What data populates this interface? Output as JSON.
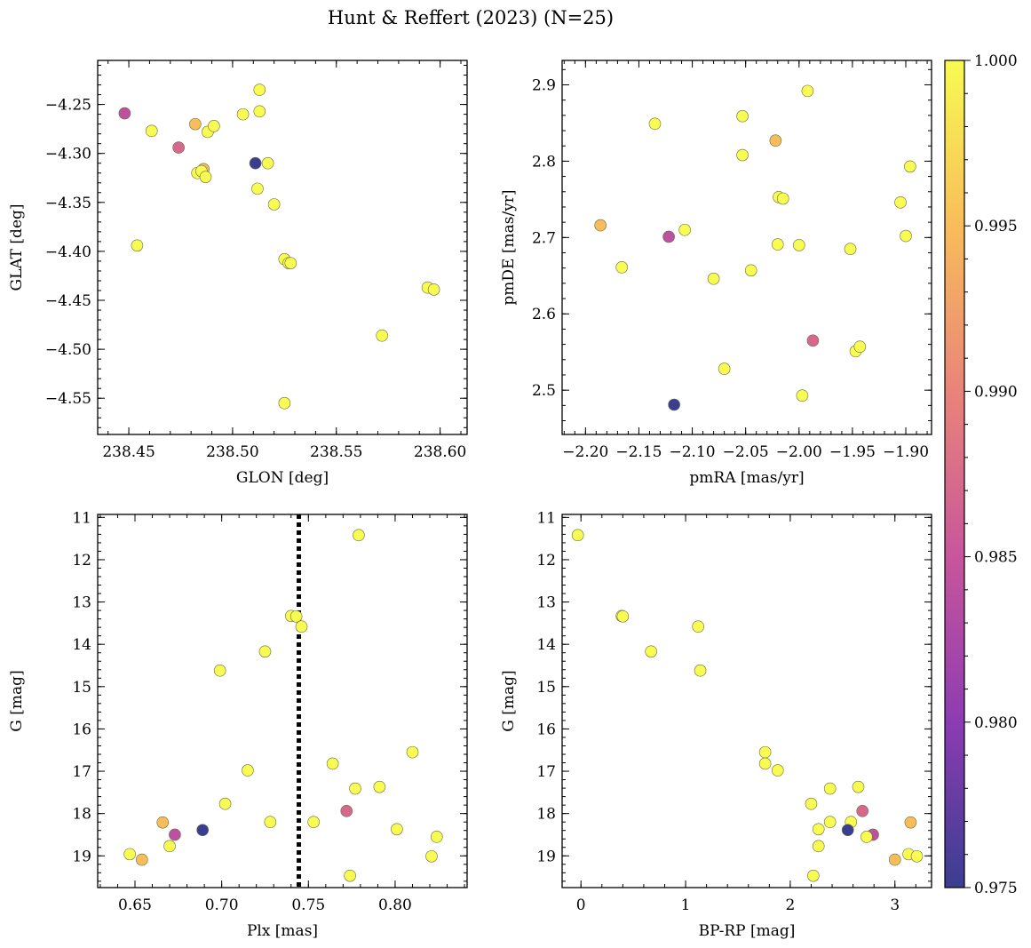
{
  "figure": {
    "title": "Hunt & Reffert (2023) (N=25)"
  },
  "colorbar": {
    "min": 0.975,
    "max": 1.0,
    "colormap": "plasma",
    "ticks": [
      "0.975",
      "0.980",
      "0.985",
      "0.990",
      "0.995",
      "1.000"
    ],
    "tick_values": [
      0.975,
      0.98,
      0.985,
      0.99,
      0.995,
      1.0
    ]
  },
  "chart_data": [
    {
      "id": "glon-glat",
      "type": "scatter",
      "xlabel": "GLON [deg]",
      "ylabel": "GLAT [deg]",
      "xlim": [
        238.435,
        238.613
      ],
      "ylim": [
        -4.587,
        -4.205
      ],
      "y_inverted": false,
      "grid": false,
      "xticks": [
        238.45,
        238.5,
        238.55,
        238.6
      ],
      "xtick_labels": [
        "238.45",
        "238.50",
        "238.55",
        "238.60"
      ],
      "xminor": 0.01,
      "yticks": [
        -4.25,
        -4.3,
        -4.35,
        -4.4,
        -4.45,
        -4.5,
        -4.55
      ],
      "ytick_labels": [
        "−4.25",
        "−4.30",
        "−4.35",
        "−4.40",
        "−4.45",
        "−4.50",
        "−4.55"
      ],
      "yminor": 0.01,
      "points": [
        {
          "x": 238.448,
          "y": -4.259,
          "c": 0.984
        },
        {
          "x": 238.461,
          "y": -4.277,
          "c": 1.0
        },
        {
          "x": 238.454,
          "y": -4.394,
          "c": 1.0
        },
        {
          "x": 238.474,
          "y": -4.294,
          "c": 0.987
        },
        {
          "x": 238.482,
          "y": -4.27,
          "c": 0.995
        },
        {
          "x": 238.486,
          "y": -4.316,
          "c": 0.995
        },
        {
          "x": 238.483,
          "y": -4.32,
          "c": 1.0
        },
        {
          "x": 238.485,
          "y": -4.318,
          "c": 1.0
        },
        {
          "x": 238.487,
          "y": -4.324,
          "c": 1.0
        },
        {
          "x": 238.488,
          "y": -4.278,
          "c": 1.0
        },
        {
          "x": 238.491,
          "y": -4.272,
          "c": 1.0
        },
        {
          "x": 238.505,
          "y": -4.26,
          "c": 1.0
        },
        {
          "x": 238.511,
          "y": -4.31,
          "c": 0.975
        },
        {
          "x": 238.513,
          "y": -4.235,
          "c": 1.0
        },
        {
          "x": 238.513,
          "y": -4.257,
          "c": 1.0
        },
        {
          "x": 238.512,
          "y": -4.336,
          "c": 1.0
        },
        {
          "x": 238.517,
          "y": -4.31,
          "c": 1.0
        },
        {
          "x": 238.52,
          "y": -4.352,
          "c": 1.0
        },
        {
          "x": 238.525,
          "y": -4.408,
          "c": 1.0
        },
        {
          "x": 238.527,
          "y": -4.412,
          "c": 1.0
        },
        {
          "x": 238.528,
          "y": -4.412,
          "c": 1.0
        },
        {
          "x": 238.525,
          "y": -4.555,
          "c": 1.0
        },
        {
          "x": 238.572,
          "y": -4.486,
          "c": 1.0
        },
        {
          "x": 238.594,
          "y": -4.437,
          "c": 1.0
        },
        {
          "x": 238.597,
          "y": -4.439,
          "c": 1.0
        }
      ]
    },
    {
      "id": "pmra-pmde",
      "type": "scatter",
      "xlabel": "pmRA [mas/yr]",
      "ylabel": "pmDE [mas/yr]",
      "xlim": [
        -2.2219,
        -1.8759
      ],
      "ylim": [
        2.442,
        2.932
      ],
      "y_inverted": false,
      "grid": false,
      "xticks": [
        -2.2,
        -2.15,
        -2.1,
        -2.05,
        -2.0,
        -1.95,
        -1.9
      ],
      "xtick_labels": [
        "−2.20",
        "−2.15",
        "−2.10",
        "−2.05",
        "−2.00",
        "−1.95",
        "−1.90"
      ],
      "xminor": 0.01,
      "yticks": [
        2.5,
        2.6,
        2.7,
        2.8,
        2.9
      ],
      "ytick_labels": [
        "2.5",
        "2.6",
        "2.7",
        "2.8",
        "2.9"
      ],
      "yminor": 0.02,
      "points": [
        {
          "x": -2.186,
          "y": 2.716,
          "c": 0.995
        },
        {
          "x": -2.166,
          "y": 2.661,
          "c": 1.0
        },
        {
          "x": -2.135,
          "y": 2.849,
          "c": 1.0
        },
        {
          "x": -2.122,
          "y": 2.701,
          "c": 0.984
        },
        {
          "x": -2.117,
          "y": 2.481,
          "c": 0.975
        },
        {
          "x": -2.107,
          "y": 2.71,
          "c": 1.0
        },
        {
          "x": -2.08,
          "y": 2.646,
          "c": 1.0
        },
        {
          "x": -2.07,
          "y": 2.528,
          "c": 1.0
        },
        {
          "x": -2.053,
          "y": 2.859,
          "c": 1.0
        },
        {
          "x": -2.053,
          "y": 2.808,
          "c": 1.0
        },
        {
          "x": -2.045,
          "y": 2.657,
          "c": 1.0
        },
        {
          "x": -2.022,
          "y": 2.827,
          "c": 0.995
        },
        {
          "x": -2.019,
          "y": 2.753,
          "c": 1.0
        },
        {
          "x": -2.015,
          "y": 2.751,
          "c": 1.0
        },
        {
          "x": -2.02,
          "y": 2.691,
          "c": 1.0
        },
        {
          "x": -2.0,
          "y": 2.69,
          "c": 1.0
        },
        {
          "x": -1.997,
          "y": 2.493,
          "c": 1.0
        },
        {
          "x": -1.992,
          "y": 2.892,
          "c": 1.0
        },
        {
          "x": -1.987,
          "y": 2.565,
          "c": 0.987
        },
        {
          "x": -1.952,
          "y": 2.685,
          "c": 1.0
        },
        {
          "x": -1.947,
          "y": 2.551,
          "c": 1.0
        },
        {
          "x": -1.943,
          "y": 2.557,
          "c": 1.0
        },
        {
          "x": -1.905,
          "y": 2.746,
          "c": 1.0
        },
        {
          "x": -1.9,
          "y": 2.702,
          "c": 1.0
        },
        {
          "x": -1.896,
          "y": 2.793,
          "c": 1.0
        }
      ]
    },
    {
      "id": "plx-g",
      "type": "scatter",
      "xlabel": "Plx [mas]",
      "ylabel": "G [mag]",
      "xlim": [
        0.6285,
        0.8415
      ],
      "ylim": [
        10.93,
        19.75
      ],
      "y_inverted": true,
      "grid": false,
      "xticks": [
        0.65,
        0.7,
        0.75,
        0.8
      ],
      "xtick_labels": [
        "0.65",
        "0.70",
        "0.75",
        "0.80"
      ],
      "xminor": 0.01,
      "yticks": [
        11,
        12,
        13,
        14,
        15,
        16,
        17,
        18,
        19
      ],
      "ytick_labels": [
        "11",
        "12",
        "13",
        "14",
        "15",
        "16",
        "17",
        "18",
        "19"
      ],
      "yminor": 0.2,
      "vline": {
        "x": 0.7445,
        "style": "dotted"
      },
      "points": [
        {
          "x": 0.779,
          "y": 11.42,
          "c": 1.0
        },
        {
          "x": 0.74,
          "y": 13.33,
          "c": 1.0
        },
        {
          "x": 0.743,
          "y": 13.34,
          "c": 1.0
        },
        {
          "x": 0.746,
          "y": 13.58,
          "c": 1.0
        },
        {
          "x": 0.725,
          "y": 14.17,
          "c": 1.0
        },
        {
          "x": 0.699,
          "y": 14.62,
          "c": 1.0
        },
        {
          "x": 0.81,
          "y": 16.55,
          "c": 1.0
        },
        {
          "x": 0.764,
          "y": 16.82,
          "c": 1.0
        },
        {
          "x": 0.715,
          "y": 16.98,
          "c": 1.0
        },
        {
          "x": 0.791,
          "y": 17.37,
          "c": 1.0
        },
        {
          "x": 0.777,
          "y": 17.41,
          "c": 1.0
        },
        {
          "x": 0.702,
          "y": 17.77,
          "c": 1.0
        },
        {
          "x": 0.772,
          "y": 17.94,
          "c": 0.987
        },
        {
          "x": 0.666,
          "y": 18.21,
          "c": 0.995
        },
        {
          "x": 0.728,
          "y": 18.2,
          "c": 1.0
        },
        {
          "x": 0.753,
          "y": 18.2,
          "c": 1.0
        },
        {
          "x": 0.801,
          "y": 18.37,
          "c": 1.0
        },
        {
          "x": 0.689,
          "y": 18.39,
          "c": 0.975
        },
        {
          "x": 0.673,
          "y": 18.5,
          "c": 0.984
        },
        {
          "x": 0.824,
          "y": 18.55,
          "c": 1.0
        },
        {
          "x": 0.67,
          "y": 18.77,
          "c": 1.0
        },
        {
          "x": 0.647,
          "y": 18.96,
          "c": 1.0
        },
        {
          "x": 0.821,
          "y": 19.01,
          "c": 1.0
        },
        {
          "x": 0.654,
          "y": 19.09,
          "c": 0.995
        },
        {
          "x": 0.774,
          "y": 19.47,
          "c": 1.0
        }
      ]
    },
    {
      "id": "bprp-g",
      "type": "scatter",
      "xlabel": "BP-RP [mag]",
      "ylabel": "G [mag]",
      "xlim": [
        -0.18,
        3.35
      ],
      "ylim": [
        10.93,
        19.75
      ],
      "y_inverted": true,
      "grid": false,
      "xticks": [
        0,
        1,
        2,
        3
      ],
      "xtick_labels": [
        "0",
        "1",
        "2",
        "3"
      ],
      "xminor": 0.2,
      "yticks": [
        11,
        12,
        13,
        14,
        15,
        16,
        17,
        18,
        19
      ],
      "ytick_labels": [
        "11",
        "12",
        "13",
        "14",
        "15",
        "16",
        "17",
        "18",
        "19"
      ],
      "yminor": 0.2,
      "points": [
        {
          "x": -0.03,
          "y": 11.42,
          "c": 1.0
        },
        {
          "x": 0.39,
          "y": 13.33,
          "c": 1.0
        },
        {
          "x": 0.4,
          "y": 13.34,
          "c": 1.0
        },
        {
          "x": 0.67,
          "y": 14.17,
          "c": 1.0
        },
        {
          "x": 1.12,
          "y": 13.58,
          "c": 1.0
        },
        {
          "x": 1.14,
          "y": 14.62,
          "c": 1.0
        },
        {
          "x": 1.76,
          "y": 16.55,
          "c": 1.0
        },
        {
          "x": 1.76,
          "y": 16.82,
          "c": 1.0
        },
        {
          "x": 1.88,
          "y": 16.98,
          "c": 1.0
        },
        {
          "x": 2.2,
          "y": 17.77,
          "c": 1.0
        },
        {
          "x": 2.38,
          "y": 17.41,
          "c": 1.0
        },
        {
          "x": 2.65,
          "y": 17.37,
          "c": 1.0
        },
        {
          "x": 2.69,
          "y": 17.94,
          "c": 0.987
        },
        {
          "x": 2.38,
          "y": 18.2,
          "c": 1.0
        },
        {
          "x": 2.58,
          "y": 18.2,
          "c": 1.0
        },
        {
          "x": 3.15,
          "y": 18.21,
          "c": 0.995
        },
        {
          "x": 2.27,
          "y": 18.37,
          "c": 1.0
        },
        {
          "x": 2.55,
          "y": 18.39,
          "c": 0.975
        },
        {
          "x": 2.79,
          "y": 18.5,
          "c": 0.984
        },
        {
          "x": 2.73,
          "y": 18.55,
          "c": 1.0
        },
        {
          "x": 2.27,
          "y": 18.77,
          "c": 1.0
        },
        {
          "x": 3.13,
          "y": 18.96,
          "c": 1.0
        },
        {
          "x": 3.21,
          "y": 19.01,
          "c": 1.0
        },
        {
          "x": 3.0,
          "y": 19.09,
          "c": 0.995
        },
        {
          "x": 2.22,
          "y": 19.47,
          "c": 1.0
        }
      ]
    }
  ]
}
